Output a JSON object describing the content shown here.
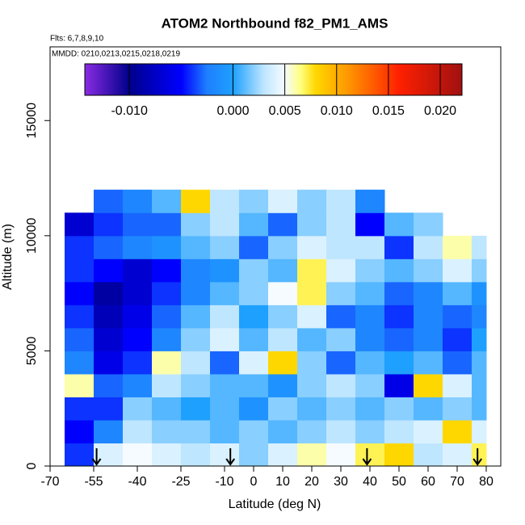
{
  "chart_data": {
    "type": "heatmap",
    "title": "ATOM2 Northbound f82_PM1_AMS",
    "subtitle": "Flts: 6,7,8,9,10",
    "annotation": "MMDD: 0210,0213,0215,0218,0219",
    "x_label": "Latitude (deg N)",
    "y_label": "Altitude (m)",
    "xlim": [
      -70,
      85
    ],
    "ylim": [
      0,
      18200
    ],
    "xticks": [
      -70,
      -55,
      -40,
      -25,
      -10,
      0,
      10,
      20,
      30,
      40,
      50,
      60,
      70,
      80
    ],
    "yticks": [
      0,
      5000,
      10000,
      15000
    ],
    "x_edges": [
      -65,
      -55,
      -45,
      -35,
      -25,
      -15,
      -5,
      5,
      15,
      25,
      35,
      45,
      55,
      65,
      75,
      80
    ],
    "y_edges": [
      0,
      1000,
      2000,
      3000,
      4000,
      5000,
      6000,
      7000,
      8000,
      9000,
      10000,
      11000,
      12000
    ],
    "z": [
      [
        -0.004,
        0.004,
        0.005,
        0.004,
        0.003,
        0.004,
        0.002,
        0.004,
        0.006,
        0.005,
        0.007,
        0.008,
        0.003,
        0.004,
        0.007
      ],
      [
        -0.005,
        -0.002,
        0.003,
        0.002,
        0.002,
        0.001,
        0.002,
        0.001,
        0.002,
        0.003,
        0.002,
        0.003,
        0.004,
        0.008,
        0.004
      ],
      [
        -0.004,
        -0.004,
        0.002,
        0.001,
        0.0,
        0.001,
        -0.001,
        0.002,
        0.001,
        0.002,
        0.001,
        0.002,
        0.001,
        0.002,
        0.001
      ],
      [
        0.006,
        -0.003,
        -0.002,
        0.003,
        0.002,
        0.001,
        0.001,
        -0.001,
        0.002,
        0.003,
        0.002,
        -0.006,
        0.008,
        0.004,
        0.001
      ],
      [
        -0.002,
        -0.006,
        -0.004,
        0.006,
        0.003,
        -0.003,
        0.004,
        0.008,
        0.002,
        -0.003,
        0.001,
        0.0,
        0.001,
        -0.003,
        0.001
      ],
      [
        -0.003,
        -0.007,
        -0.005,
        -0.002,
        0.002,
        0.004,
        0.001,
        0.003,
        0.001,
        0.002,
        -0.002,
        -0.003,
        -0.002,
        -0.004,
        0.0
      ],
      [
        -0.004,
        -0.008,
        -0.006,
        -0.003,
        0.001,
        0.003,
        0.0,
        0.002,
        0.004,
        -0.003,
        -0.002,
        -0.004,
        -0.002,
        -0.003,
        -0.002
      ],
      [
        -0.005,
        -0.009,
        -0.007,
        -0.004,
        -0.002,
        0.001,
        0.002,
        0.005,
        0.007,
        0.002,
        0.001,
        -0.003,
        -0.002,
        0.001,
        -0.001
      ],
      [
        -0.004,
        -0.005,
        -0.007,
        -0.005,
        -0.002,
        -0.001,
        0.002,
        0.001,
        0.007,
        0.004,
        0.002,
        0.001,
        0.002,
        0.004,
        0.002
      ],
      [
        -0.004,
        -0.003,
        -0.002,
        -0.001,
        0.001,
        0.002,
        -0.003,
        0.002,
        0.004,
        0.003,
        0.003,
        -0.004,
        0.003,
        0.006,
        0.003
      ],
      [
        -0.007,
        -0.004,
        -0.003,
        -0.003,
        0.002,
        0.003,
        0.001,
        -0.003,
        0.002,
        0.003,
        -0.005,
        0.001,
        0.002,
        null,
        null
      ],
      [
        null,
        -0.003,
        -0.002,
        0.001,
        0.008,
        0.003,
        0.002,
        0.004,
        0.002,
        0.003,
        -0.002,
        null,
        null,
        null,
        null
      ]
    ],
    "clim": [
      -0.0143,
      0.0221
    ],
    "cticks": [
      {
        "value": -0.01,
        "label": "-0.010"
      },
      {
        "value": 0,
        "label": "0.000"
      },
      {
        "value": 0.005,
        "label": "0.005"
      },
      {
        "value": 0.01,
        "label": "0.010"
      },
      {
        "value": 0.015,
        "label": "0.015"
      },
      {
        "value": 0.02,
        "label": "0.020"
      }
    ],
    "colorscale": [
      [
        -0.0143,
        "#8a2be2"
      ],
      [
        -0.01,
        "#00008b"
      ],
      [
        -0.005,
        "#0000ff"
      ],
      [
        -0.0025,
        "#1e7fff"
      ],
      [
        0,
        "#1ea0ff"
      ],
      [
        0.003,
        "#bfe6ff"
      ],
      [
        0.005,
        "#f5fbff"
      ],
      [
        0.0065,
        "#ffff80"
      ],
      [
        0.008,
        "#ffd700"
      ],
      [
        0.011,
        "#ff9900"
      ],
      [
        0.016,
        "#ff2000"
      ],
      [
        0.0221,
        "#a01010"
      ]
    ],
    "arrows": [
      -54,
      -8,
      39,
      77
    ]
  }
}
